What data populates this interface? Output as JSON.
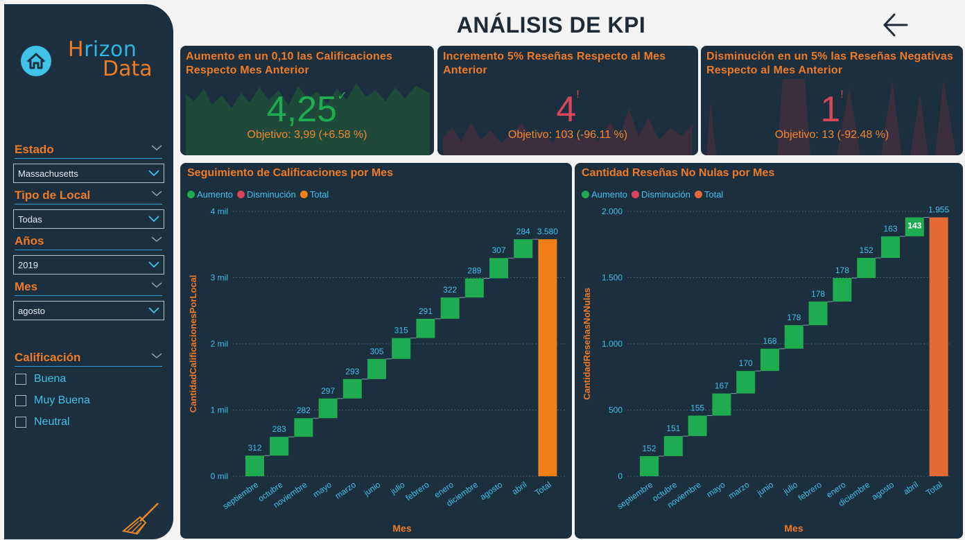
{
  "header": {
    "title": "ANÁLISIS DE KPI"
  },
  "logo": {
    "line1_a": "H",
    "line1_b": "rizon",
    "line2": "Data"
  },
  "filters": {
    "estado": {
      "label": "Estado",
      "value": "Massachusetts"
    },
    "tipo": {
      "label": "Tipo de Local",
      "value": "Todas"
    },
    "anios": {
      "label": "Años",
      "value": "2019"
    },
    "mes": {
      "label": "Mes",
      "value": "agosto"
    },
    "calificacion": {
      "label": "Calificación",
      "options": [
        "Buena",
        "Muy Buena",
        "Neutral"
      ]
    }
  },
  "kpis": [
    {
      "title": "Aumento en un 0,10 las Calificaciones Respecto Mes Anterior",
      "value": "4,25",
      "mark": "✓",
      "goal": "Objetivo: 3,99 (+6.58 %)",
      "status_color": "#1fab4f"
    },
    {
      "title": "Incremento 5% Reseñas Respecto al Mes Anterior",
      "value": "4",
      "mark": "!",
      "goal": "Objetivo: 103 (-96.11 %)",
      "status_color": "#d8445a"
    },
    {
      "title": "Disminución en un 5% las Reseñas Negativas Respecto al Mes Anterior",
      "value": "1",
      "mark": "!",
      "goal": "Objetivo: 13 (-92.48 %)",
      "status_color": "#d8445a"
    }
  ],
  "legend": {
    "increase": "Aumento",
    "decrease": "Disminución",
    "total": "Total"
  },
  "chart_data": [
    {
      "type": "bar",
      "subtype": "waterfall",
      "title": "Seguimiento de Calificaciones por Mes",
      "xlabel": "Mes",
      "ylabel": "CantidadCalificacionesPorLocal",
      "categories": [
        "septiembre",
        "octubre",
        "noviembre",
        "mayo",
        "marzo",
        "junio",
        "julio",
        "febrero",
        "enero",
        "diciembre",
        "agosto",
        "abril",
        "Total"
      ],
      "values": [
        312,
        283,
        282,
        297,
        293,
        305,
        315,
        291,
        322,
        289,
        307,
        284,
        3580
      ],
      "data_labels": [
        "312",
        "283",
        "282",
        "297",
        "293",
        "305",
        "315",
        "291",
        "322",
        "289",
        "307",
        "284",
        "3.580"
      ],
      "ylim": [
        0,
        4000
      ],
      "yticks": [
        0,
        1000,
        2000,
        3000,
        4000
      ],
      "ytick_labels": [
        "0 mil",
        "1 mil",
        "2 mil",
        "3 mil",
        "4 mil"
      ],
      "colors": {
        "increase": "#1fab4f",
        "decrease": "#d8445a",
        "total": "#f07f18"
      },
      "grid": true,
      "legend_position": "top-left"
    },
    {
      "type": "bar",
      "subtype": "waterfall",
      "title": "Cantidad Reseñas No Nulas por Mes",
      "xlabel": "Mes",
      "ylabel": "CantidadReseñasNoNulas",
      "categories": [
        "septiembre",
        "octubre",
        "noviembre",
        "mayo",
        "marzo",
        "junio",
        "julio",
        "febrero",
        "enero",
        "diciembre",
        "agosto",
        "abril",
        "Total"
      ],
      "values": [
        152,
        151,
        155,
        167,
        170,
        168,
        178,
        178,
        178,
        152,
        163,
        143,
        1955
      ],
      "data_labels": [
        "152",
        "151",
        "155",
        "167",
        "170",
        "168",
        "178",
        "178",
        "178",
        "152",
        "163",
        "143",
        "1.955"
      ],
      "ylim": [
        0,
        2000
      ],
      "yticks": [
        0,
        500,
        1000,
        1500,
        2000
      ],
      "ytick_labels": [
        "0",
        "500",
        "1.000",
        "1.500",
        "2.000"
      ],
      "colors": {
        "increase": "#1fab4f",
        "decrease": "#d8445a",
        "total": "#e46a35"
      },
      "grid": true,
      "legend_position": "top-left"
    }
  ]
}
